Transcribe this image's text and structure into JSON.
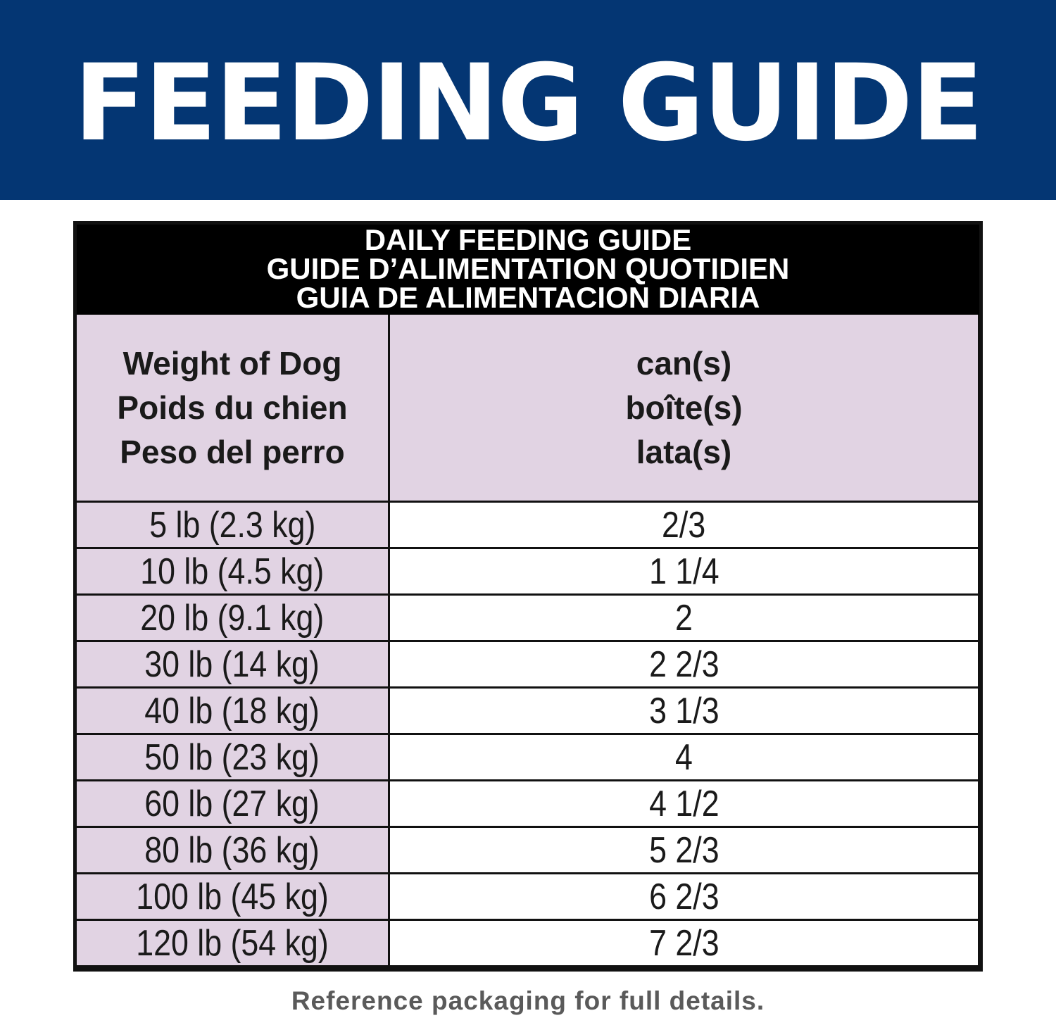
{
  "banner": {
    "title": "FEEDING GUIDE",
    "background_color": "#043673"
  },
  "table": {
    "title_lines": [
      "DAILY FEEDING GUIDE",
      "GUIDE D’ALIMENTATION QUOTIDIEN",
      "GUIA DE ALIMENTACION DIARIA"
    ],
    "header_color": "#000000",
    "label_fill_color": "#e1d3e3",
    "column_headers": {
      "weight": [
        "Weight of Dog",
        "Poids du chien",
        "Peso del perro"
      ],
      "amount": [
        "can(s)",
        "boîte(s)",
        "lata(s)"
      ]
    },
    "rows": [
      {
        "weight": "5 lb (2.3 kg)",
        "amount": "2/3"
      },
      {
        "weight": "10 lb (4.5 kg)",
        "amount": "1 1/4"
      },
      {
        "weight": "20 lb (9.1 kg)",
        "amount": "2"
      },
      {
        "weight": "30 lb (14 kg)",
        "amount": "2 2/3"
      },
      {
        "weight": "40 lb (18 kg)",
        "amount": "3 1/3"
      },
      {
        "weight": "50 lb (23 kg)",
        "amount": "4"
      },
      {
        "weight": "60 lb (27 kg)",
        "amount": "4 1/2"
      },
      {
        "weight": "80 lb (36 kg)",
        "amount": "5 2/3"
      },
      {
        "weight": "100 lb (45 kg)",
        "amount": "6 2/3"
      },
      {
        "weight": "120 lb (54 kg)",
        "amount": "7 2/3"
      }
    ]
  },
  "footer": {
    "note": "Reference packaging for full details."
  }
}
